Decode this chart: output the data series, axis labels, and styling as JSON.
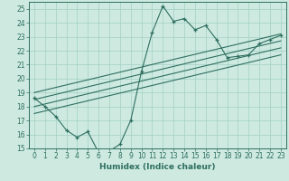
{
  "xlabel": "Humidex (Indice chaleur)",
  "bg_color": "#ceeae0",
  "grid_color": "#a8d4c8",
  "line_color": "#2e6e60",
  "xlim": [
    -0.5,
    23.5
  ],
  "ylim": [
    15,
    25.5
  ],
  "xticks": [
    0,
    1,
    2,
    3,
    4,
    5,
    6,
    7,
    8,
    9,
    10,
    11,
    12,
    13,
    14,
    15,
    16,
    17,
    18,
    19,
    20,
    21,
    22,
    23
  ],
  "yticks": [
    15,
    16,
    17,
    18,
    19,
    20,
    21,
    22,
    23,
    24,
    25
  ],
  "main_x": [
    0,
    1,
    2,
    3,
    4,
    5,
    6,
    7,
    8,
    9,
    10,
    11,
    12,
    13,
    14,
    15,
    16,
    17,
    18,
    19,
    20,
    21,
    22,
    23
  ],
  "main_y": [
    18.6,
    18.0,
    17.3,
    16.3,
    15.8,
    16.2,
    14.7,
    14.8,
    15.3,
    17.0,
    20.5,
    23.3,
    25.2,
    24.1,
    24.3,
    23.5,
    23.8,
    22.8,
    21.5,
    21.6,
    21.7,
    22.5,
    22.8,
    23.1
  ],
  "reg_lines": [
    {
      "x": [
        0,
        23
      ],
      "y": [
        19.0,
        23.2
      ]
    },
    {
      "x": [
        0,
        23
      ],
      "y": [
        18.5,
        22.7
      ]
    },
    {
      "x": [
        0,
        23
      ],
      "y": [
        18.0,
        22.2
      ]
    },
    {
      "x": [
        0,
        23
      ],
      "y": [
        17.5,
        21.7
      ]
    }
  ]
}
